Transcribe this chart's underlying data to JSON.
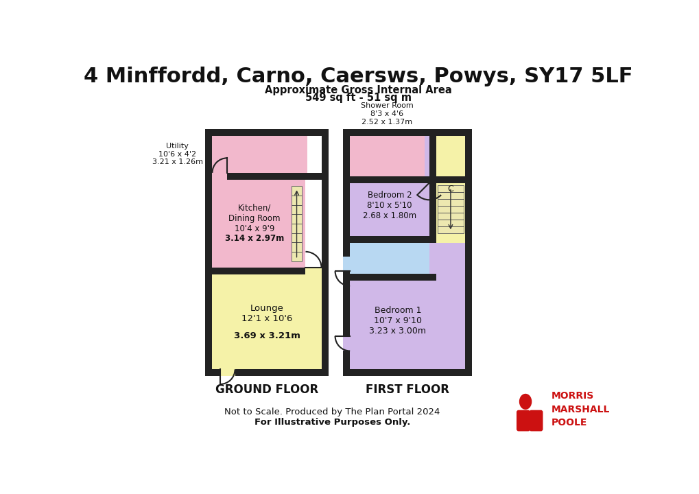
{
  "title": "4 Minffordd, Carno, Caersws, Powys, SY17 5LF",
  "subtitle1": "Approximate Gross Internal Area",
  "subtitle2": "549 sq ft - 51 sq m",
  "footer1": "Not to Scale. Produced by The Plan Portal 2024",
  "footer2": "For Illustrative Purposes Only.",
  "ground_floor_label": "GROUND FLOOR",
  "first_floor_label": "FIRST FLOOR",
  "bg_color": "#ffffff",
  "wall_color": "#222222",
  "pink": "#f2b8cc",
  "yellow": "#f5f2a8",
  "lavender": "#d0b8e8",
  "blue": "#b8d8f2",
  "morris_color": "#cc1111",
  "scale": 0.56,
  "wall_t": 0.13
}
